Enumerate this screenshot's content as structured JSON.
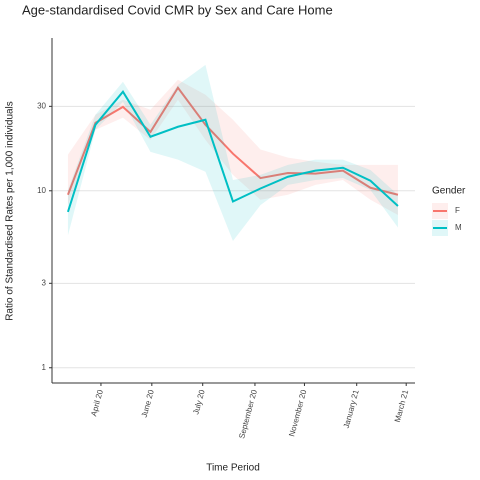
{
  "chart_data": {
    "type": "line",
    "title": "Age-standardised Covid CMR by Sex and Care Home",
    "x_label": "Time Period",
    "y_label": "Ratio of Standardised Rates per 1,000 individuals",
    "legend_title": "Gender",
    "legend_position": "right",
    "log_y": true,
    "grid": true,
    "x": [
      0,
      1,
      2,
      3,
      4,
      5,
      6,
      7,
      8,
      9,
      10,
      11,
      12
    ],
    "xlim": [
      -0.58,
      12.62
    ],
    "xticks": [
      {
        "value": 1.2,
        "label": "April 20"
      },
      {
        "value": 3.05,
        "label": "June 20"
      },
      {
        "value": 4.9,
        "label": "July 20"
      },
      {
        "value": 6.8,
        "label": "September 20"
      },
      {
        "value": 8.6,
        "label": "November 20"
      },
      {
        "value": 10.5,
        "label": "January 21"
      },
      {
        "value": 12.3,
        "label": "March 21"
      }
    ],
    "ylim": [
      0.82,
      73
    ],
    "yticks": [
      1,
      3,
      10,
      30
    ],
    "series": [
      {
        "name": "F",
        "color": "#F8766D",
        "values": [
          9.5,
          24.2,
          29.8,
          21.5,
          38.2,
          23.6,
          16.2,
          11.8,
          12.6,
          12.5,
          13.0,
          10.4,
          9.5
        ],
        "lower": [
          8.3,
          22.1,
          25.9,
          19.4,
          32.7,
          19.4,
          12.3,
          8.9,
          9.5,
          10.8,
          11.5,
          8.9,
          7.3
        ],
        "upper": [
          16.0,
          26.9,
          32.7,
          28.7,
          42.4,
          34.9,
          25.2,
          17.1,
          15.4,
          14.6,
          14.0,
          14.0,
          14.0
        ]
      },
      {
        "name": "M",
        "color": "#00BFC4",
        "values": [
          7.6,
          23.6,
          36.3,
          20.2,
          23.0,
          25.2,
          8.7,
          10.3,
          12.0,
          13.0,
          13.5,
          11.4,
          8.2
        ],
        "lower": [
          5.6,
          22.1,
          31.8,
          16.6,
          15.0,
          12.8,
          5.2,
          8.3,
          10.8,
          11.5,
          11.8,
          10.1,
          6.2
        ],
        "upper": [
          10.1,
          26.9,
          41.3,
          23.6,
          39.7,
          51.5,
          11.5,
          12.3,
          14.0,
          15.0,
          15.0,
          13.1,
          9.5
        ]
      }
    ]
  }
}
